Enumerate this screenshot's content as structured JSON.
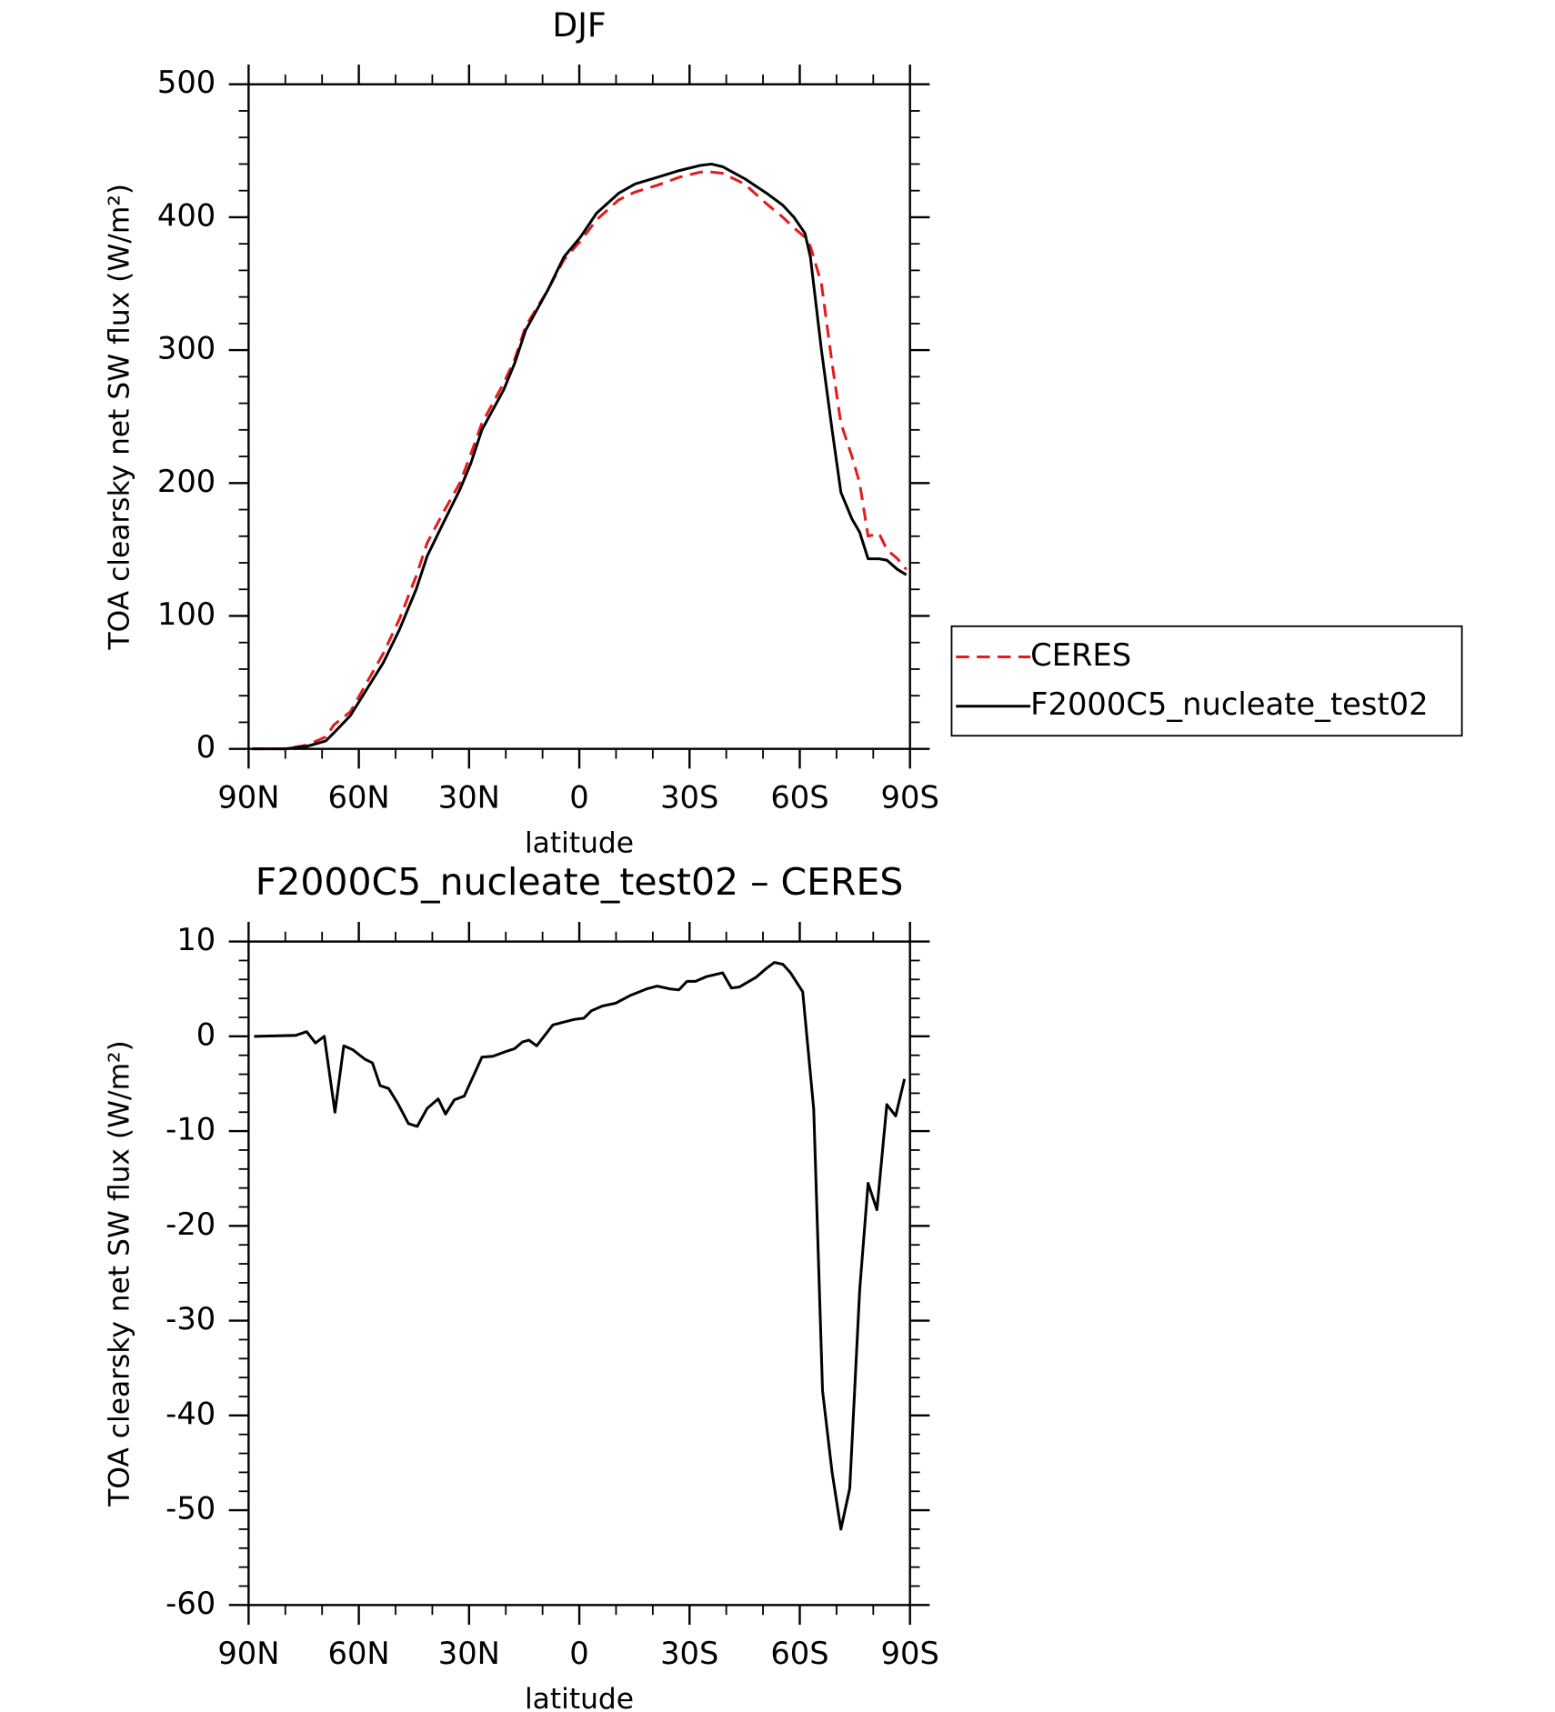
{
  "chart_data": [
    {
      "type": "line",
      "title": "DJF",
      "ylabel": "TOA clearsky net SW flux (W/m²)",
      "xlabel": "latitude",
      "xlim": [
        90,
        -90
      ],
      "xticks": [
        {
          "value": 90,
          "label": "90N"
        },
        {
          "value": 60,
          "label": "60N"
        },
        {
          "value": 30,
          "label": "30N"
        },
        0,
        {
          "value": -30,
          "label": "30S"
        },
        {
          "value": -60,
          "label": "60S"
        },
        {
          "value": -90,
          "label": "90S"
        }
      ],
      "ylim": [
        0,
        500
      ],
      "yticks": [
        0,
        100,
        200,
        300,
        400,
        500
      ],
      "legend": "right",
      "x": [
        89,
        80,
        74,
        69,
        66.8,
        62.3,
        57.8,
        53.3,
        48.9,
        44.4,
        41.4,
        37,
        32.5,
        29.5,
        26.5,
        20.6,
        17.6,
        14.6,
        8.6,
        4.2,
        -0.3,
        -4.7,
        -10.7,
        -15.2,
        -21.2,
        -27.1,
        -33,
        -36,
        -39,
        -45,
        -51,
        -55.4,
        -58.4,
        -61.4,
        -62.9,
        -65.9,
        -68.8,
        -71.2,
        -74.2,
        -76.3,
        -78.6,
        -81.6,
        -83.7,
        -86.6,
        -89
      ],
      "series": [
        {
          "name": "CERES",
          "color": "#e41a1c",
          "dashed": true,
          "values": [
            0,
            0,
            3,
            9,
            18,
            28,
            50,
            72,
            98,
            130,
            155,
            178,
            200,
            222,
            245,
            275,
            293,
            318,
            345,
            368,
            382,
            398,
            413,
            419,
            424,
            430,
            434,
            434,
            433,
            425,
            410,
            400,
            392,
            385,
            378,
            350,
            290,
            245,
            220,
            200,
            160,
            162,
            150,
            143,
            135
          ]
        },
        {
          "name": "F2000C5_nucleate_test02",
          "color": "#000000",
          "dashed": false,
          "values": [
            0,
            0,
            2,
            6,
            12,
            25,
            45,
            65,
            90,
            120,
            145,
            170,
            195,
            215,
            240,
            270,
            290,
            315,
            345,
            370,
            385,
            403,
            418,
            425,
            430,
            435,
            439,
            440,
            438,
            429,
            418,
            409,
            400,
            388,
            370,
            300,
            240,
            193,
            173,
            163,
            143,
            143,
            142,
            135,
            131
          ]
        }
      ]
    },
    {
      "type": "line",
      "title": "F2000C5_nucleate_test02 – CERES",
      "ylabel": "TOA clearsky net SW flux (W/m²)",
      "xlabel": "latitude",
      "xlim": [
        90,
        -90
      ],
      "xticks": [
        {
          "value": 90,
          "label": "90N"
        },
        {
          "value": 60,
          "label": "60N"
        },
        {
          "value": 30,
          "label": "30N"
        },
        0,
        {
          "value": -30,
          "label": "30S"
        },
        {
          "value": -60,
          "label": "60S"
        },
        {
          "value": -90,
          "label": "90S"
        }
      ],
      "ylim": [
        -60,
        10
      ],
      "yticks": [
        -60,
        -50,
        -40,
        -30,
        -20,
        -10,
        0,
        10
      ],
      "color": "#000000",
      "x": [
        88.5,
        77.2,
        74.2,
        71.8,
        69.4,
        66.5,
        64.1,
        61.7,
        58.4,
        56.3,
        54.2,
        51.9,
        49.5,
        46.5,
        44.1,
        41.4,
        38.4,
        36.4,
        34,
        31.3,
        26.5,
        23.5,
        20,
        17.6,
        15.5,
        13.7,
        11.6,
        7.2,
        4.2,
        1.2,
        -1.2,
        -3.3,
        -6.3,
        -9.9,
        -13.8,
        -18.3,
        -21.2,
        -24.8,
        -27.1,
        -29.3,
        -31.6,
        -34.6,
        -39,
        -41.4,
        -43.5,
        -48,
        -51,
        -53.1,
        -55.4,
        -57.5,
        -60.8,
        -63.8,
        -66.2,
        -68.8,
        -71.2,
        -73.6,
        -76.3,
        -78.6,
        -81,
        -83.7,
        -86.1,
        -88.5
      ],
      "values": [
        0,
        0.1,
        0.5,
        -0.7,
        0,
        -8,
        -1,
        -1.4,
        -2.4,
        -2.8,
        -5.2,
        -5.5,
        -7,
        -9.2,
        -9.5,
        -7.6,
        -6.6,
        -8.2,
        -6.7,
        -6.3,
        -2.2,
        -2.1,
        -1.6,
        -1.3,
        -0.6,
        -0.4,
        -1,
        1.2,
        1.5,
        1.8,
        1.9,
        2.7,
        3.2,
        3.5,
        4.3,
        5,
        5.3,
        5,
        4.9,
        5.8,
        5.8,
        6.3,
        6.7,
        5.1,
        5.2,
        6.2,
        7.2,
        7.8,
        7.6,
        6.7,
        4.7,
        -7.7,
        -37.4,
        -46,
        -52,
        -47.7,
        -26.8,
        -15.5,
        -18.3,
        -7.2,
        -8.4,
        -4.5
      ]
    }
  ]
}
